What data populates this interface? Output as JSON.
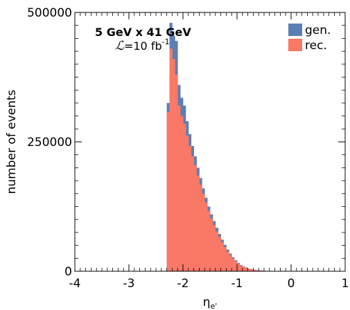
{
  "chart_data": {
    "type": "bar",
    "xlabel": "ηe'",
    "ylabel": "number of events",
    "xlim": [
      -4,
      1
    ],
    "ylim": [
      0,
      500000
    ],
    "x_ticks": [
      "-4",
      "-3",
      "-2",
      "-1",
      "0",
      "1"
    ],
    "y_ticks": [
      "0",
      "250000",
      "500000"
    ],
    "bin_width": 0.05,
    "bin_edges_start": -2.3,
    "annotation_line1": "5 GeV x 41 GeV",
    "annotation_lumi_symbol": "ℒ",
    "annotation_lumi_text": "=10 fb",
    "annotation_lumi_exp": "-1",
    "legend": "top-right",
    "series": [
      {
        "name": "gen.",
        "color": "#5b7fb4",
        "values": [
          325000,
          480000,
          455000,
          445000,
          360000,
          335000,
          320000,
          290000,
          265000,
          242000,
          222000,
          200000,
          180000,
          160000,
          142000,
          125000,
          110000,
          97000,
          84000,
          72000,
          61000,
          51000,
          42000,
          34000,
          27000,
          21000,
          16000,
          12000,
          9000,
          7000,
          5000,
          4000,
          3000,
          2200,
          1600,
          1100,
          800,
          500,
          300,
          200
        ]
      },
      {
        "name": "rec.",
        "color": "#fa7866",
        "values": [
          308000,
          430000,
          410000,
          380000,
          320000,
          300000,
          285000,
          262000,
          242000,
          222000,
          205000,
          185000,
          167000,
          150000,
          133000,
          117000,
          102000,
          89000,
          77000,
          66000,
          56000,
          47000,
          38000,
          31000,
          24500,
          19000,
          14500,
          11000,
          8200,
          6200,
          4600,
          3500,
          2600,
          1900,
          1400,
          1000,
          700,
          450,
          280,
          180
        ]
      }
    ]
  }
}
